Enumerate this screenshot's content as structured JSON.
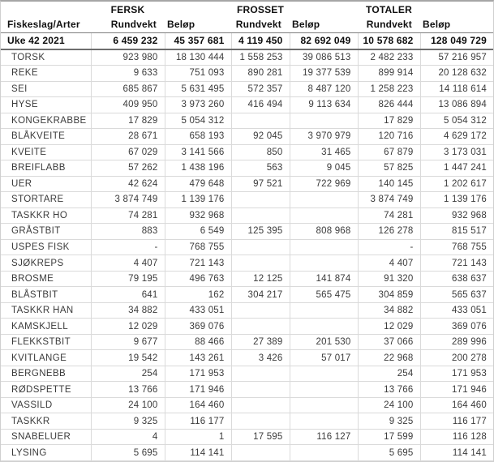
{
  "table": {
    "title_context": "Uke 42 2021",
    "group_headers": {
      "fersk": "FERSK",
      "frosset": "FROSSET",
      "totaler": "TOTALER"
    },
    "col_headers": {
      "species": "Fiskeslag/Arter",
      "rundvekt": "Rundvekt",
      "belop": "Beløp"
    },
    "summary_row": {
      "label": "Uke 42 2021",
      "values": [
        "6 459 232",
        "45 357 681",
        "4 119 450",
        "82 692 049",
        "10 578 682",
        "128 049 729"
      ]
    },
    "rows": [
      {
        "species": "TORSK",
        "values": [
          "923 980",
          "18 130 444",
          "1 558 253",
          "39 086 513",
          "2 482 233",
          "57 216 957"
        ]
      },
      {
        "species": "REKE",
        "values": [
          "9 633",
          "751 093",
          "890 281",
          "19 377 539",
          "899 914",
          "20 128 632"
        ]
      },
      {
        "species": "SEI",
        "values": [
          "685 867",
          "5 631 495",
          "572 357",
          "8 487 120",
          "1 258 223",
          "14 118 614"
        ]
      },
      {
        "species": "HYSE",
        "values": [
          "409 950",
          "3 973 260",
          "416 494",
          "9 113 634",
          "826 444",
          "13 086 894"
        ]
      },
      {
        "species": "KONGEKRABBE",
        "values": [
          "17 829",
          "5 054 312",
          "",
          "",
          "17 829",
          "5 054 312"
        ]
      },
      {
        "species": "BLÅKVEITE",
        "values": [
          "28 671",
          "658 193",
          "92 045",
          "3 970 979",
          "120 716",
          "4 629 172"
        ]
      },
      {
        "species": "KVEITE",
        "values": [
          "67 029",
          "3 141 566",
          "850",
          "31 465",
          "67 879",
          "3 173 031"
        ]
      },
      {
        "species": "BREIFLABB",
        "values": [
          "57 262",
          "1 438 196",
          "563",
          "9 045",
          "57 825",
          "1 447 241"
        ]
      },
      {
        "species": "UER",
        "values": [
          "42 624",
          "479 648",
          "97 521",
          "722 969",
          "140 145",
          "1 202 617"
        ]
      },
      {
        "species": "STORTARE",
        "values": [
          "3 874 749",
          "1 139 176",
          "",
          "",
          "3 874 749",
          "1 139 176"
        ]
      },
      {
        "species": "TASKKR HO",
        "values": [
          "74 281",
          "932 968",
          "",
          "",
          "74 281",
          "932 968"
        ]
      },
      {
        "species": "GRÅSTBIT",
        "values": [
          "883",
          "6 549",
          "125 395",
          "808 968",
          "126 278",
          "815 517"
        ]
      },
      {
        "species": "USPES FISK",
        "values": [
          "-",
          "768 755",
          "",
          "",
          "-",
          "768 755"
        ]
      },
      {
        "species": "SJØKREPS",
        "values": [
          "4 407",
          "721 143",
          "",
          "",
          "4 407",
          "721 143"
        ]
      },
      {
        "species": "BROSME",
        "values": [
          "79 195",
          "496 763",
          "12 125",
          "141 874",
          "91 320",
          "638 637"
        ]
      },
      {
        "species": "BLÅSTBIT",
        "values": [
          "641",
          "162",
          "304 217",
          "565 475",
          "304 859",
          "565 637"
        ]
      },
      {
        "species": "TASKKR HAN",
        "values": [
          "34 882",
          "433 051",
          "",
          "",
          "34 882",
          "433 051"
        ]
      },
      {
        "species": "KAMSKJELL",
        "values": [
          "12 029",
          "369 076",
          "",
          "",
          "12 029",
          "369 076"
        ]
      },
      {
        "species": "FLEKKSTBIT",
        "values": [
          "9 677",
          "88 466",
          "27 389",
          "201 530",
          "37 066",
          "289 996"
        ]
      },
      {
        "species": "KVITLANGE",
        "values": [
          "19 542",
          "143 261",
          "3 426",
          "57 017",
          "22 968",
          "200 278"
        ]
      },
      {
        "species": "BERGNEBB",
        "values": [
          "254",
          "171 953",
          "",
          "",
          "254",
          "171 953"
        ]
      },
      {
        "species": "RØDSPETTE",
        "values": [
          "13 766",
          "171 946",
          "",
          "",
          "13 766",
          "171 946"
        ]
      },
      {
        "species": "VASSILD",
        "values": [
          "24 100",
          "164 460",
          "",
          "",
          "24 100",
          "164 460"
        ]
      },
      {
        "species": "TASKKR",
        "values": [
          "9 325",
          "116 177",
          "",
          "",
          "9 325",
          "116 177"
        ]
      },
      {
        "species": "SNABELUER",
        "values": [
          "4",
          "1",
          "17 595",
          "116 127",
          "17 599",
          "116 128"
        ]
      },
      {
        "species": "LYSING",
        "values": [
          "5 695",
          "114 141",
          "",
          "",
          "5 695",
          "114 141"
        ]
      }
    ]
  },
  "colors": {
    "data_text": "#3b3b3b",
    "header_text": "#0d0d0d",
    "grid_line": "#dadada",
    "strong_line": "#6e6e6e",
    "outer_border": "#cfcfcf"
  }
}
